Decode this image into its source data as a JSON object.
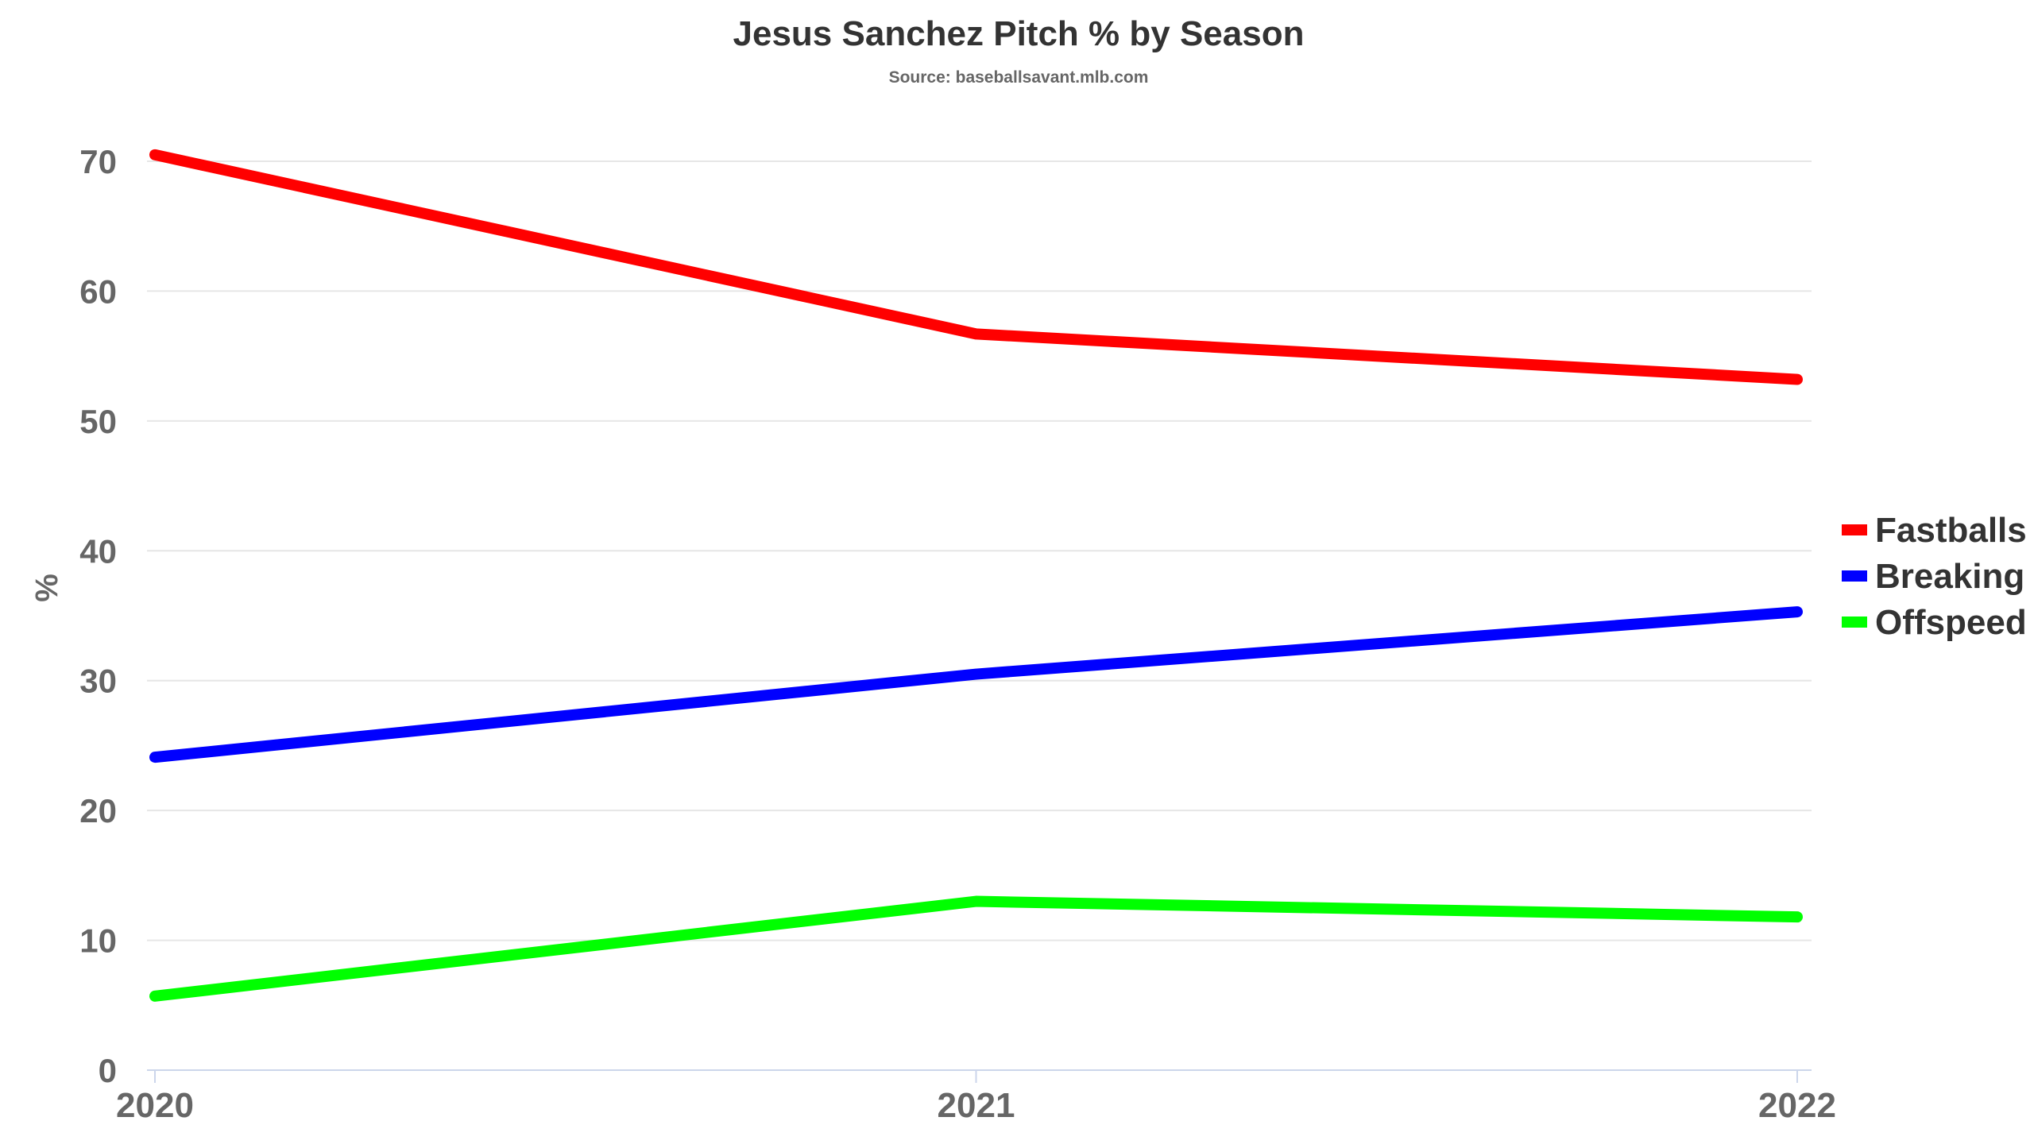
{
  "chart_data": {
    "type": "line",
    "title": "Jesus Sanchez Pitch % by Season",
    "subtitle": "Source: baseballsavant.mlb.com",
    "xlabel": "",
    "ylabel": "%",
    "x": [
      "2020",
      "2021",
      "2022"
    ],
    "ylim": [
      0,
      70
    ],
    "yticks": [
      0,
      10,
      20,
      30,
      40,
      50,
      60,
      70
    ],
    "grid": true,
    "legend_position": "right",
    "series": [
      {
        "name": "Fastballs",
        "color": "#ff0000",
        "values": [
          70.5,
          56.7,
          53.2
        ]
      },
      {
        "name": "Breaking",
        "color": "#0000ff",
        "values": [
          24.1,
          30.5,
          35.3
        ]
      },
      {
        "name": "Offspeed",
        "color": "#00ff00",
        "values": [
          5.7,
          13.0,
          11.8
        ]
      }
    ]
  }
}
